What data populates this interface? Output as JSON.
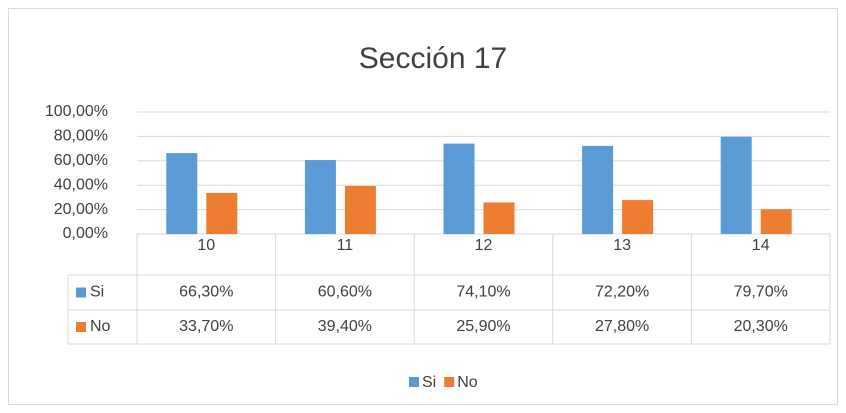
{
  "chart_data": {
    "type": "bar",
    "title": "Sección 17",
    "categories": [
      "10",
      "11",
      "12",
      "13",
      "14"
    ],
    "series": [
      {
        "name": "Si",
        "color": "#5b9bd5",
        "values": [
          66.3,
          60.6,
          74.1,
          72.2,
          79.7
        ],
        "value_labels": [
          "66,30%",
          "60,60%",
          "74,10%",
          "72,20%",
          "79,70%"
        ]
      },
      {
        "name": "No",
        "color": "#ed7d31",
        "values": [
          33.7,
          39.4,
          25.9,
          27.8,
          20.3
        ],
        "value_labels": [
          "33,70%",
          "39,40%",
          "25,90%",
          "27,80%",
          "20,30%"
        ]
      }
    ],
    "ylim": [
      0,
      100
    ],
    "yticks": [
      {
        "value": 0,
        "label": "0,00%"
      },
      {
        "value": 20,
        "label": "20,00%"
      },
      {
        "value": 40,
        "label": "40,00%"
      },
      {
        "value": 60,
        "label": "60,00%"
      },
      {
        "value": 80,
        "label": "80,00%"
      },
      {
        "value": 100,
        "label": "100,00%"
      }
    ],
    "grid": true,
    "legend": "bottom"
  }
}
